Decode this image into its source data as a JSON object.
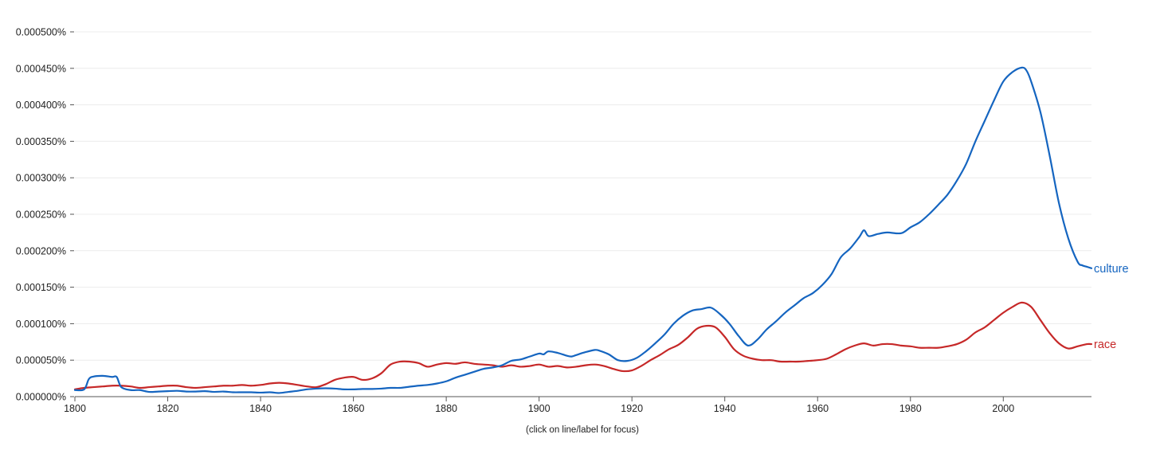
{
  "chart_data": {
    "type": "line",
    "title": "",
    "xlabel": "",
    "ylabel": "",
    "xlim": [
      1800,
      2019
    ],
    "ylim": [
      0,
      0.0005
    ],
    "grid": true,
    "x_ticks": [
      1800,
      1820,
      1840,
      1860,
      1880,
      1900,
      1920,
      1940,
      1960,
      1980,
      2000
    ],
    "x_tick_labels": [
      "1800",
      "1820",
      "1840",
      "1860",
      "1880",
      "1900",
      "1920",
      "1940",
      "1960",
      "1980",
      "2000"
    ],
    "y_ticks": [
      0,
      5e-05,
      0.0001,
      0.00015,
      0.0002,
      0.00025,
      0.0003,
      0.00035,
      0.0004,
      0.00045,
      0.0005
    ],
    "y_tick_labels": [
      "0.000000%",
      "0.000050%",
      "0.000100%",
      "0.000150%",
      "0.000200%",
      "0.000250%",
      "0.000300%",
      "0.000350%",
      "0.000400%",
      "0.000450%",
      "0.000500%"
    ],
    "hint": "(click on line/label for focus)",
    "series": [
      {
        "name": "culture",
        "color": "#1565c0",
        "points": [
          [
            1800,
            9e-06
          ],
          [
            1802,
            1e-05
          ],
          [
            1803,
            2.4e-05
          ],
          [
            1804,
            2.75e-05
          ],
          [
            1806,
            2.85e-05
          ],
          [
            1808,
            2.7e-05
          ],
          [
            1809,
            2.7e-05
          ],
          [
            1810,
            1.3e-05
          ],
          [
            1812,
            9e-06
          ],
          [
            1814,
            9e-06
          ],
          [
            1816,
            6.5e-06
          ],
          [
            1818,
            7e-06
          ],
          [
            1820,
            7.5e-06
          ],
          [
            1822,
            8e-06
          ],
          [
            1824,
            7e-06
          ],
          [
            1826,
            7e-06
          ],
          [
            1828,
            7.5e-06
          ],
          [
            1830,
            6.5e-06
          ],
          [
            1832,
            7e-06
          ],
          [
            1834,
            6e-06
          ],
          [
            1836,
            6e-06
          ],
          [
            1838,
            6e-06
          ],
          [
            1840,
            5.5e-06
          ],
          [
            1842,
            6e-06
          ],
          [
            1844,
            5e-06
          ],
          [
            1846,
            6.5e-06
          ],
          [
            1848,
            8e-06
          ],
          [
            1850,
            1e-05
          ],
          [
            1852,
            1.1e-05
          ],
          [
            1854,
            1.15e-05
          ],
          [
            1856,
            1.1e-05
          ],
          [
            1858,
            1e-05
          ],
          [
            1860,
            1e-05
          ],
          [
            1862,
            1.05e-05
          ],
          [
            1864,
            1.05e-05
          ],
          [
            1866,
            1.1e-05
          ],
          [
            1868,
            1.2e-05
          ],
          [
            1870,
            1.2e-05
          ],
          [
            1872,
            1.35e-05
          ],
          [
            1874,
            1.5e-05
          ],
          [
            1876,
            1.6e-05
          ],
          [
            1878,
            1.8e-05
          ],
          [
            1880,
            2.1e-05
          ],
          [
            1882,
            2.6e-05
          ],
          [
            1884,
            3e-05
          ],
          [
            1886,
            3.4e-05
          ],
          [
            1888,
            3.8e-05
          ],
          [
            1890,
            4e-05
          ],
          [
            1892,
            4.3e-05
          ],
          [
            1894,
            4.9e-05
          ],
          [
            1896,
            5.1e-05
          ],
          [
            1898,
            5.5e-05
          ],
          [
            1900,
            5.9e-05
          ],
          [
            1901,
            5.8e-05
          ],
          [
            1902,
            6.2e-05
          ],
          [
            1904,
            6e-05
          ],
          [
            1906,
            5.6e-05
          ],
          [
            1907,
            5.5e-05
          ],
          [
            1908,
            5.7e-05
          ],
          [
            1910,
            6.1e-05
          ],
          [
            1912,
            6.4e-05
          ],
          [
            1913,
            6.3e-05
          ],
          [
            1915,
            5.8e-05
          ],
          [
            1917,
            5e-05
          ],
          [
            1919,
            4.9e-05
          ],
          [
            1921,
            5.3e-05
          ],
          [
            1923,
            6.2e-05
          ],
          [
            1925,
            7.3e-05
          ],
          [
            1927,
            8.5e-05
          ],
          [
            1929,
            0.0001
          ],
          [
            1931,
            0.000111
          ],
          [
            1933,
            0.000118
          ],
          [
            1935,
            0.00012
          ],
          [
            1937,
            0.000122
          ],
          [
            1939,
            0.000113
          ],
          [
            1941,
            0.0001
          ],
          [
            1943,
            8.3e-05
          ],
          [
            1945,
            7e-05
          ],
          [
            1947,
            7.8e-05
          ],
          [
            1949,
            9.2e-05
          ],
          [
            1951,
            0.000103
          ],
          [
            1953,
            0.000115
          ],
          [
            1955,
            0.000125
          ],
          [
            1957,
            0.000135
          ],
          [
            1959,
            0.000142
          ],
          [
            1961,
            0.000153
          ],
          [
            1963,
            0.000168
          ],
          [
            1965,
            0.000191
          ],
          [
            1967,
            0.000203
          ],
          [
            1969,
            0.000219
          ],
          [
            1970,
            0.000228
          ],
          [
            1971,
            0.00022
          ],
          [
            1973,
            0.000223
          ],
          [
            1975,
            0.000225
          ],
          [
            1978,
            0.000224
          ],
          [
            1980,
            0.000232
          ],
          [
            1982,
            0.000239
          ],
          [
            1984,
            0.00025
          ],
          [
            1986,
            0.000263
          ],
          [
            1988,
            0.000277
          ],
          [
            1990,
            0.000296
          ],
          [
            1992,
            0.000319
          ],
          [
            1994,
            0.00035
          ],
          [
            1996,
            0.000378
          ],
          [
            1998,
            0.000406
          ],
          [
            2000,
            0.000432
          ],
          [
            2002,
            0.000445
          ],
          [
            2004,
            0.000451
          ],
          [
            2005,
            0.000447
          ],
          [
            2006,
            0.000432
          ],
          [
            2008,
            0.00039
          ],
          [
            2010,
            0.00033
          ],
          [
            2012,
            0.000265
          ],
          [
            2014,
            0.000217
          ],
          [
            2016,
            0.000185
          ],
          [
            2017,
            0.00018
          ],
          [
            2018,
            0.000178
          ],
          [
            2019,
            0.000176
          ]
        ]
      },
      {
        "name": "race",
        "color": "#c62828",
        "points": [
          [
            1800,
            1e-05
          ],
          [
            1802,
            1.2e-05
          ],
          [
            1804,
            1.3e-05
          ],
          [
            1806,
            1.4e-05
          ],
          [
            1808,
            1.5e-05
          ],
          [
            1810,
            1.5e-05
          ],
          [
            1812,
            1.4e-05
          ],
          [
            1814,
            1.2e-05
          ],
          [
            1816,
            1.3e-05
          ],
          [
            1818,
            1.4e-05
          ],
          [
            1820,
            1.5e-05
          ],
          [
            1822,
            1.5e-05
          ],
          [
            1824,
            1.3e-05
          ],
          [
            1826,
            1.2e-05
          ],
          [
            1828,
            1.3e-05
          ],
          [
            1830,
            1.4e-05
          ],
          [
            1832,
            1.5e-05
          ],
          [
            1834,
            1.5e-05
          ],
          [
            1836,
            1.6e-05
          ],
          [
            1838,
            1.5e-05
          ],
          [
            1840,
            1.6e-05
          ],
          [
            1842,
            1.8e-05
          ],
          [
            1844,
            1.9e-05
          ],
          [
            1846,
            1.8e-05
          ],
          [
            1848,
            1.6e-05
          ],
          [
            1850,
            1.4e-05
          ],
          [
            1852,
            1.3e-05
          ],
          [
            1854,
            1.7e-05
          ],
          [
            1856,
            2.3e-05
          ],
          [
            1858,
            2.6e-05
          ],
          [
            1860,
            2.7e-05
          ],
          [
            1862,
            2.3e-05
          ],
          [
            1864,
            2.5e-05
          ],
          [
            1866,
            3.2e-05
          ],
          [
            1868,
            4.4e-05
          ],
          [
            1870,
            4.8e-05
          ],
          [
            1872,
            4.8e-05
          ],
          [
            1874,
            4.6e-05
          ],
          [
            1876,
            4.1e-05
          ],
          [
            1878,
            4.4e-05
          ],
          [
            1880,
            4.6e-05
          ],
          [
            1882,
            4.5e-05
          ],
          [
            1884,
            4.7e-05
          ],
          [
            1886,
            4.5e-05
          ],
          [
            1888,
            4.4e-05
          ],
          [
            1890,
            4.3e-05
          ],
          [
            1892,
            4.1e-05
          ],
          [
            1894,
            4.3e-05
          ],
          [
            1896,
            4.1e-05
          ],
          [
            1898,
            4.2e-05
          ],
          [
            1900,
            4.4e-05
          ],
          [
            1902,
            4.1e-05
          ],
          [
            1904,
            4.2e-05
          ],
          [
            1906,
            4e-05
          ],
          [
            1908,
            4.1e-05
          ],
          [
            1910,
            4.3e-05
          ],
          [
            1912,
            4.4e-05
          ],
          [
            1914,
            4.2e-05
          ],
          [
            1916,
            3.8e-05
          ],
          [
            1918,
            3.5e-05
          ],
          [
            1920,
            3.6e-05
          ],
          [
            1922,
            4.2e-05
          ],
          [
            1924,
            5e-05
          ],
          [
            1926,
            5.7e-05
          ],
          [
            1928,
            6.5e-05
          ],
          [
            1930,
            7.1e-05
          ],
          [
            1932,
            8.1e-05
          ],
          [
            1934,
            9.3e-05
          ],
          [
            1936,
            9.7e-05
          ],
          [
            1938,
            9.5e-05
          ],
          [
            1940,
            8.2e-05
          ],
          [
            1942,
            6.5e-05
          ],
          [
            1944,
            5.6e-05
          ],
          [
            1946,
            5.2e-05
          ],
          [
            1948,
            5e-05
          ],
          [
            1950,
            5e-05
          ],
          [
            1952,
            4.8e-05
          ],
          [
            1954,
            4.8e-05
          ],
          [
            1956,
            4.8e-05
          ],
          [
            1958,
            4.9e-05
          ],
          [
            1960,
            5e-05
          ],
          [
            1962,
            5.2e-05
          ],
          [
            1964,
            5.8e-05
          ],
          [
            1966,
            6.5e-05
          ],
          [
            1968,
            7e-05
          ],
          [
            1970,
            7.3e-05
          ],
          [
            1972,
            7e-05
          ],
          [
            1974,
            7.2e-05
          ],
          [
            1976,
            7.2e-05
          ],
          [
            1978,
            7e-05
          ],
          [
            1980,
            6.9e-05
          ],
          [
            1982,
            6.7e-05
          ],
          [
            1984,
            6.7e-05
          ],
          [
            1986,
            6.7e-05
          ],
          [
            1988,
            6.9e-05
          ],
          [
            1990,
            7.2e-05
          ],
          [
            1992,
            7.8e-05
          ],
          [
            1994,
            8.8e-05
          ],
          [
            1996,
            9.5e-05
          ],
          [
            1998,
            0.000105
          ],
          [
            2000,
            0.000115
          ],
          [
            2002,
            0.000123
          ],
          [
            2004,
            0.000129
          ],
          [
            2006,
            0.000123
          ],
          [
            2008,
            0.000105
          ],
          [
            2010,
            8.7e-05
          ],
          [
            2012,
            7.3e-05
          ],
          [
            2014,
            6.6e-05
          ],
          [
            2016,
            6.9e-05
          ],
          [
            2018,
            7.2e-05
          ],
          [
            2019,
            7.2e-05
          ]
        ]
      }
    ]
  }
}
